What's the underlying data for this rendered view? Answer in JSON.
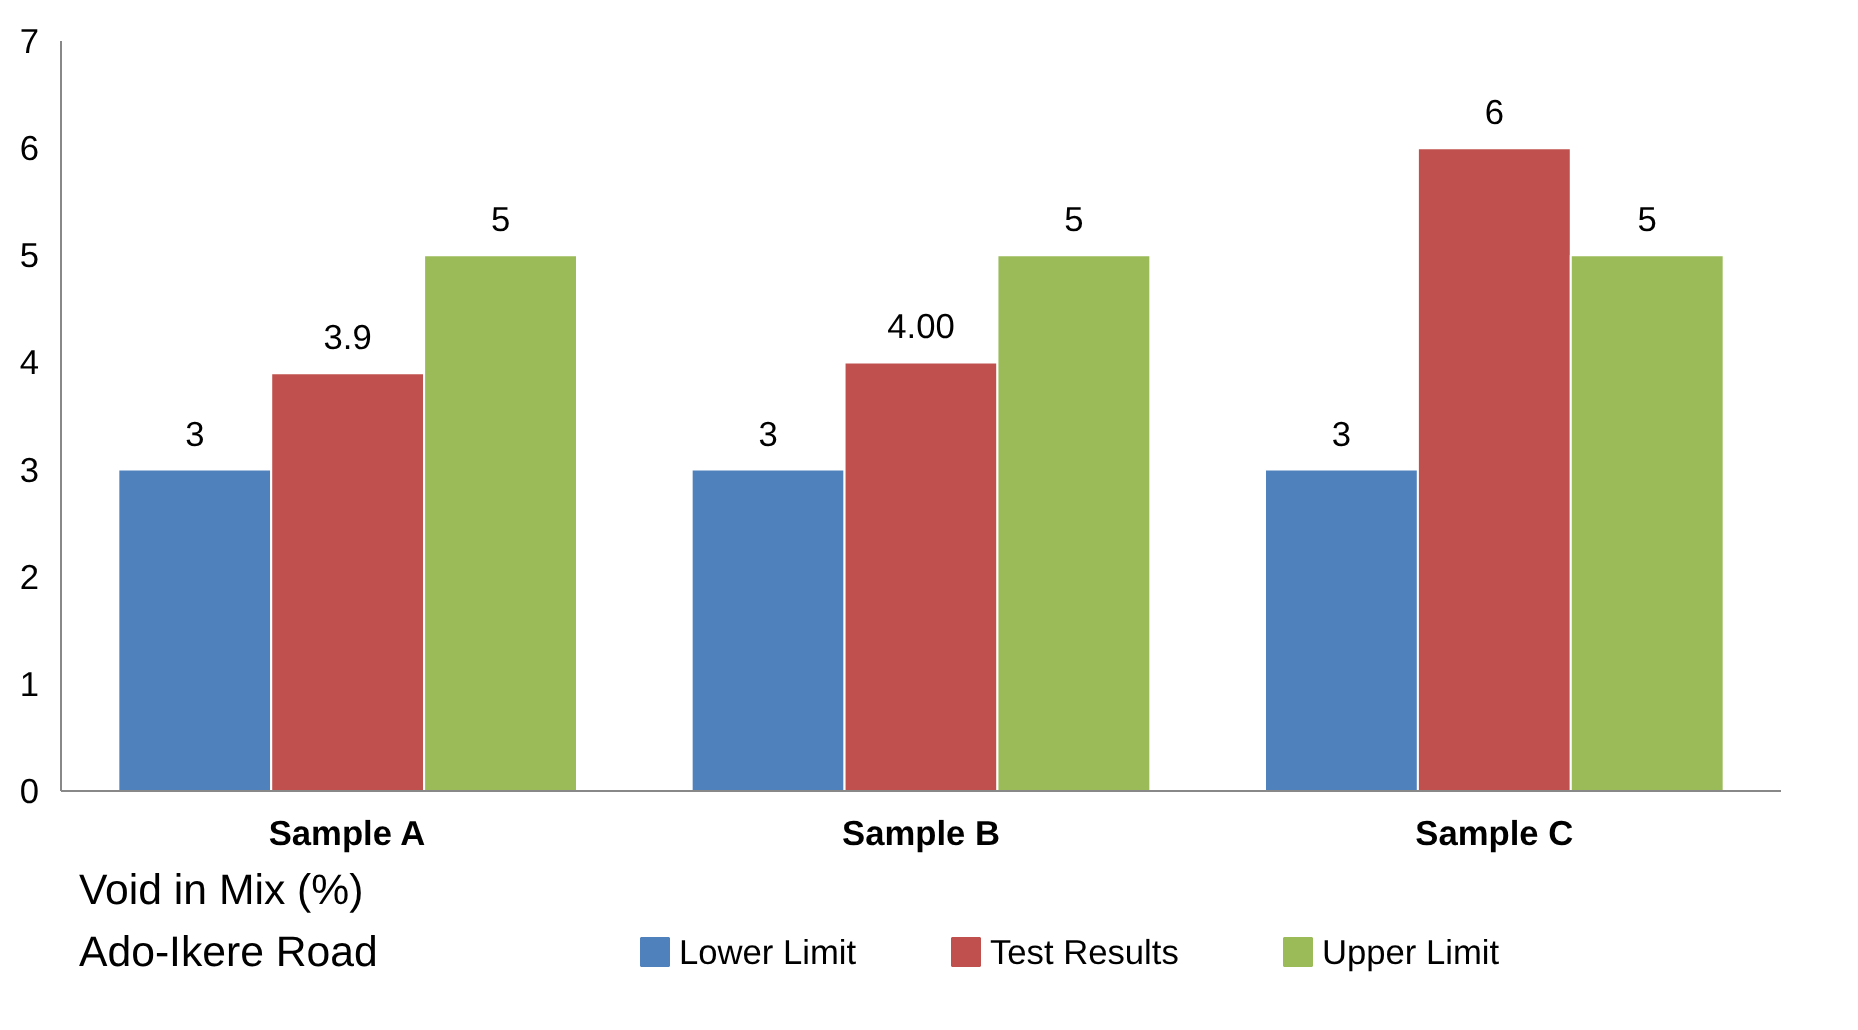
{
  "chart_data": {
    "type": "bar",
    "categories": [
      "Sample A",
      "Sample B",
      "Sample C"
    ],
    "series": [
      {
        "name": "Lower Limit",
        "color": "#4f81bd",
        "values": [
          3,
          3,
          3
        ],
        "value_labels": [
          "3",
          "3",
          "3"
        ]
      },
      {
        "name": "Test Results",
        "color": "#c0504d",
        "values": [
          3.9,
          4.0,
          6
        ],
        "value_labels": [
          "3.9",
          "4.00",
          "6"
        ]
      },
      {
        "name": "Upper Limit",
        "color": "#9bbb59",
        "values": [
          5,
          5,
          5
        ],
        "value_labels": [
          "5",
          "5",
          "5"
        ]
      }
    ],
    "ylim": [
      0,
      7
    ],
    "yticks": [
      0,
      1,
      2,
      3,
      4,
      5,
      6,
      7
    ],
    "grid": false,
    "legend": "bottom",
    "annotations": [
      "Void in Mix (%)",
      "Ado-Ikere Road"
    ]
  }
}
